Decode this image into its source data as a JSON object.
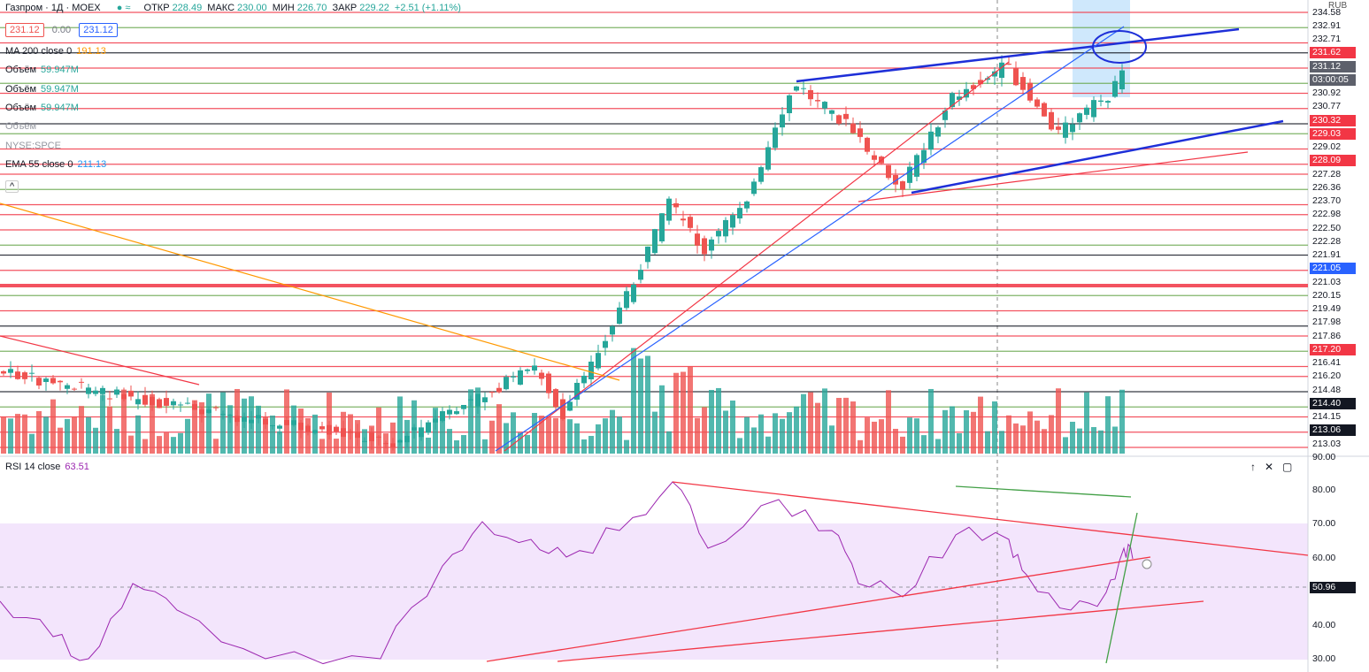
{
  "header": {
    "symbol": "Газпром · 1Д · MOEX",
    "open_label": "ОТКР",
    "open": "228.49",
    "high_label": "МАКС",
    "high": "230.00",
    "low_label": "МИН",
    "low": "226.70",
    "close_label": "ЗАКР",
    "close": "229.22",
    "change": "+2.51 (+1.11%)"
  },
  "legend": {
    "bid": "231.12",
    "spread": "0.00",
    "ask": "231.12",
    "rows": [
      {
        "name": "MA 200 close 0",
        "value": "191.13"
      },
      {
        "name": "Объём",
        "value": "59.947M"
      },
      {
        "name": "Объём",
        "value": "59.947M"
      },
      {
        "name": "Объём",
        "value": "59.947M"
      },
      {
        "name": "Объём"
      },
      {
        "name": "NYSE:SPCE"
      },
      {
        "name": "EMA 55 close 0",
        "value": "211.13"
      }
    ]
  },
  "price_axis": {
    "currency": "RUB",
    "labels": [
      "234.58",
      "232.91",
      "232.71",
      "231.62",
      "231.12",
      "03:00:05",
      "230.92",
      "230.77",
      "230.32",
      "229.03",
      "229.02",
      "228.09",
      "227.28",
      "226.36",
      "223.70",
      "222.98",
      "222.50",
      "222.28",
      "221.91",
      "221.05",
      "221.03",
      "220.15",
      "219.49",
      "217.98",
      "217.86",
      "217.20",
      "216.41",
      "216.20",
      "214.48",
      "214.40",
      "214.15",
      "213.06",
      "213.03",
      "90.00"
    ]
  },
  "rsi": {
    "title": "RSI 14 close",
    "value": "63.51",
    "labels": [
      "80.00",
      "70.00",
      "60.00",
      "50.96",
      "40.00",
      "30.00"
    ]
  }
}
